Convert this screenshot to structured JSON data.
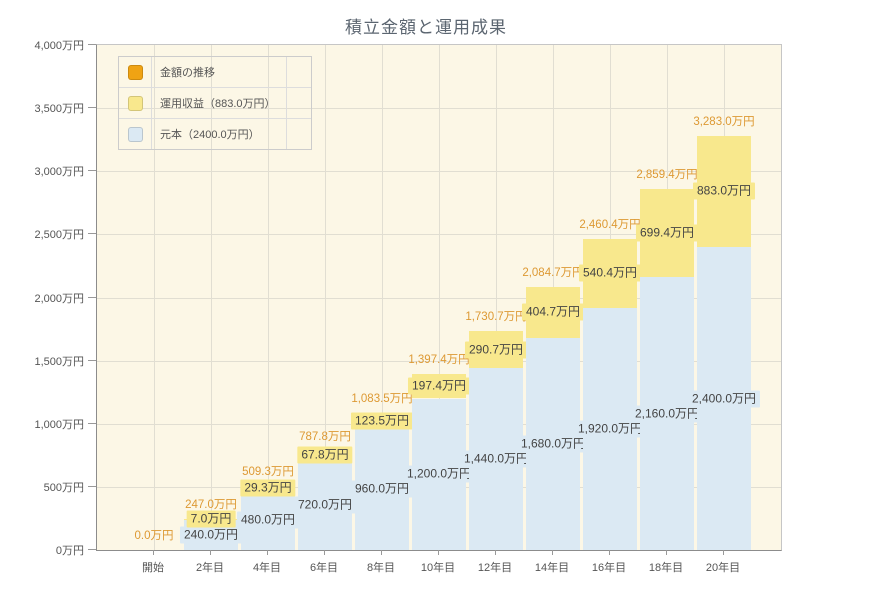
{
  "chart_title": "積立金額と運用成果",
  "legend": {
    "items": [
      {
        "label": "金額の推移",
        "color": "#f0a313"
      },
      {
        "label": "運用収益（883.0万円）",
        "color": "#f8e88d"
      },
      {
        "label": "元本（2400.0万円）",
        "color": "#dbe9f3"
      }
    ]
  },
  "chart_data": {
    "type": "bar",
    "stacked": true,
    "title": "積立金額と運用成果",
    "xlabel": "",
    "ylabel": "",
    "ylim": [
      0,
      4000
    ],
    "ytick_step": 500,
    "ytick_labels": [
      "0万円",
      "500万円",
      "1,000万円",
      "1,500万円",
      "2,000万円",
      "2,500万円",
      "3,000万円",
      "3,500万円",
      "4,000万円"
    ],
    "grid": true,
    "legend_position": "top-left",
    "categories": [
      "開始",
      "2年目",
      "4年目",
      "6年目",
      "8年目",
      "10年目",
      "12年目",
      "14年目",
      "16年目",
      "18年目",
      "20年目"
    ],
    "series": [
      {
        "name": "元本",
        "color": "#dbe9f3",
        "values": [
          0,
          240,
          480,
          720,
          960,
          1200,
          1440,
          1680,
          1920,
          2160,
          2400
        ],
        "labels": [
          "",
          "240.0万円",
          "480.0万円",
          "720.0万円",
          "960.0万円",
          "1,200.0万円",
          "1,440.0万円",
          "1,680.0万円",
          "1,920.0万円",
          "2,160.0万円",
          "2,400.0万円"
        ]
      },
      {
        "name": "運用収益",
        "color": "#f8e88d",
        "values": [
          0,
          7.0,
          29.3,
          67.8,
          123.5,
          197.4,
          290.7,
          404.7,
          540.4,
          699.4,
          883.0
        ],
        "labels": [
          "",
          "7.0万円",
          "29.3万円",
          "67.8万円",
          "123.5万円",
          "197.4万円",
          "290.7万円",
          "404.7万円",
          "540.4万円",
          "699.4万円",
          "883.0万円"
        ]
      }
    ],
    "totals": [
      0.0,
      247.0,
      509.3,
      787.8,
      1083.5,
      1397.4,
      1730.7,
      2084.7,
      2460.4,
      2859.4,
      3283.0
    ],
    "total_labels": [
      "0.0万円",
      "247.0万円",
      "509.3万円",
      "787.8万円",
      "1,083.5万円",
      "1,397.4万円",
      "1,730.7万円",
      "2,084.7万円",
      "2,460.4万円",
      "2,859.4万円",
      "3,283.0万円"
    ],
    "total_label_color": "#dd9933"
  }
}
